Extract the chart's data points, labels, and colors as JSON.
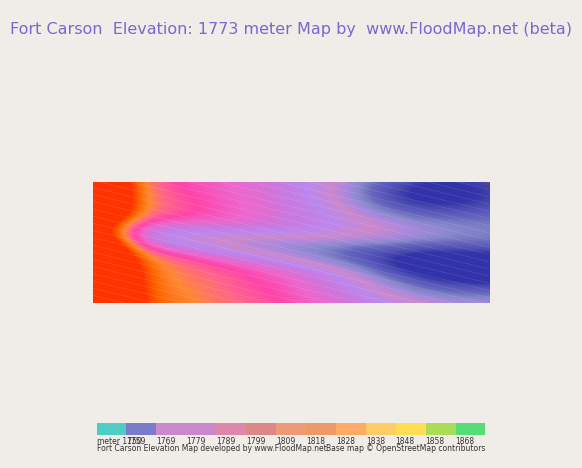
{
  "title": "Fort Carson  Elevation: 1773 meter Map by  www.FloodMap.net (beta)",
  "title_color": "#7b68cc",
  "title_bg": "#f0ece8",
  "title_fontsize": 11.5,
  "footer_text1": "Fort Carson Elevation Map developed by www.FloodMap.net",
  "footer_text2": "Base map © OpenStreetMap contributors",
  "colorbar_labels": [
    "meter 1750",
    "1759",
    "1769",
    "1779",
    "1789",
    "1799",
    "1809",
    "1818",
    "1828",
    "1838",
    "1848",
    "1858",
    "1868"
  ],
  "colorbar_colors": [
    "#4ecdc4",
    "#7b7bcc",
    "#cc88cc",
    "#cc88cc",
    "#dd88aa",
    "#dd8888",
    "#ee9977",
    "#ee9966",
    "#ffaa66",
    "#ffcc66",
    "#ffdd55",
    "#aadd55",
    "#55dd77"
  ],
  "map_bg_color": "#d4a0c8",
  "fig_width": 5.12,
  "fig_height": 5.82
}
